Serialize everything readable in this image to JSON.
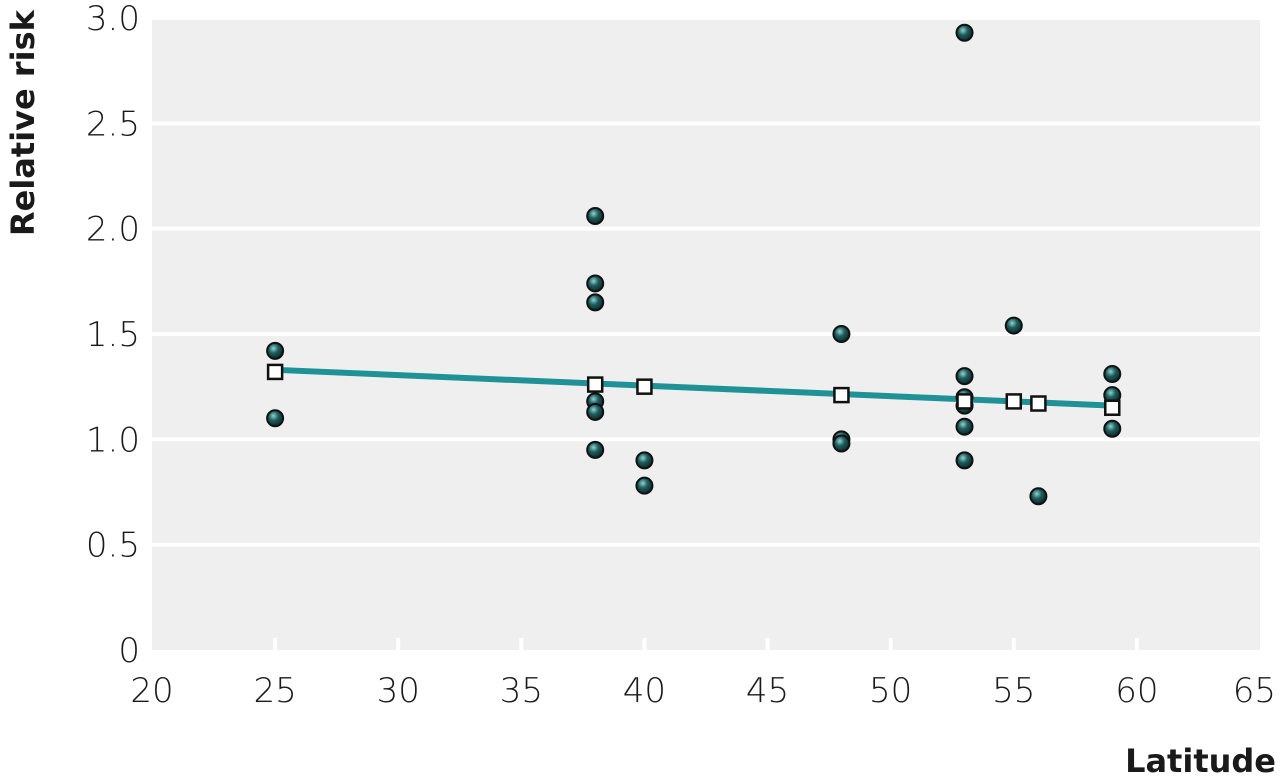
{
  "chart_data": {
    "type": "scatter",
    "xlabel": "Latitude",
    "ylabel": "Relative risk",
    "xlim": [
      20,
      65
    ],
    "ylim": [
      0,
      3.0
    ],
    "xticks": [
      20,
      25,
      30,
      35,
      40,
      45,
      50,
      55,
      60,
      65
    ],
    "yticks": [
      0,
      0.5,
      1.0,
      1.5,
      2.0,
      2.5,
      3.0
    ],
    "xtick_labels": [
      "20",
      "25",
      "30",
      "35",
      "40",
      "45",
      "50",
      "55",
      "60",
      "65"
    ],
    "ytick_labels": [
      "0",
      "0.5",
      "1.0",
      "1.5",
      "2.0",
      "2.5",
      "3.0"
    ],
    "grid": "horizontal",
    "background_color": "#efefef",
    "marker_color": "#1f5e5e",
    "line_color": "#1e9296",
    "series": [
      {
        "kind": "points",
        "marker": "circle",
        "points": [
          {
            "x": 25,
            "y": 1.42
          },
          {
            "x": 25,
            "y": 1.1
          },
          {
            "x": 38,
            "y": 2.06
          },
          {
            "x": 38,
            "y": 1.74
          },
          {
            "x": 38,
            "y": 1.65
          },
          {
            "x": 38,
            "y": 1.18
          },
          {
            "x": 38,
            "y": 1.13
          },
          {
            "x": 38,
            "y": 0.95
          },
          {
            "x": 40,
            "y": 0.9
          },
          {
            "x": 40,
            "y": 0.78
          },
          {
            "x": 48,
            "y": 1.5
          },
          {
            "x": 48,
            "y": 1.0
          },
          {
            "x": 48,
            "y": 0.98
          },
          {
            "x": 53,
            "y": 2.93
          },
          {
            "x": 53,
            "y": 1.3
          },
          {
            "x": 53,
            "y": 1.2
          },
          {
            "x": 53,
            "y": 1.16
          },
          {
            "x": 53,
            "y": 1.06
          },
          {
            "x": 53,
            "y": 0.9
          },
          {
            "x": 55,
            "y": 1.54
          },
          {
            "x": 56,
            "y": 0.73
          },
          {
            "x": 59,
            "y": 1.31
          },
          {
            "x": 59,
            "y": 1.21
          },
          {
            "x": 59,
            "y": 1.05
          }
        ]
      },
      {
        "kind": "points",
        "marker": "square",
        "points": [
          {
            "x": 25,
            "y": 1.32
          },
          {
            "x": 38,
            "y": 1.26
          },
          {
            "x": 40,
            "y": 1.25
          },
          {
            "x": 48,
            "y": 1.21
          },
          {
            "x": 53,
            "y": 1.18
          },
          {
            "x": 55,
            "y": 1.18
          },
          {
            "x": 56,
            "y": 1.17
          },
          {
            "x": 59,
            "y": 1.15
          }
        ]
      },
      {
        "kind": "line",
        "points": [
          {
            "x": 25,
            "y": 1.33
          },
          {
            "x": 59,
            "y": 1.16
          }
        ]
      }
    ]
  }
}
